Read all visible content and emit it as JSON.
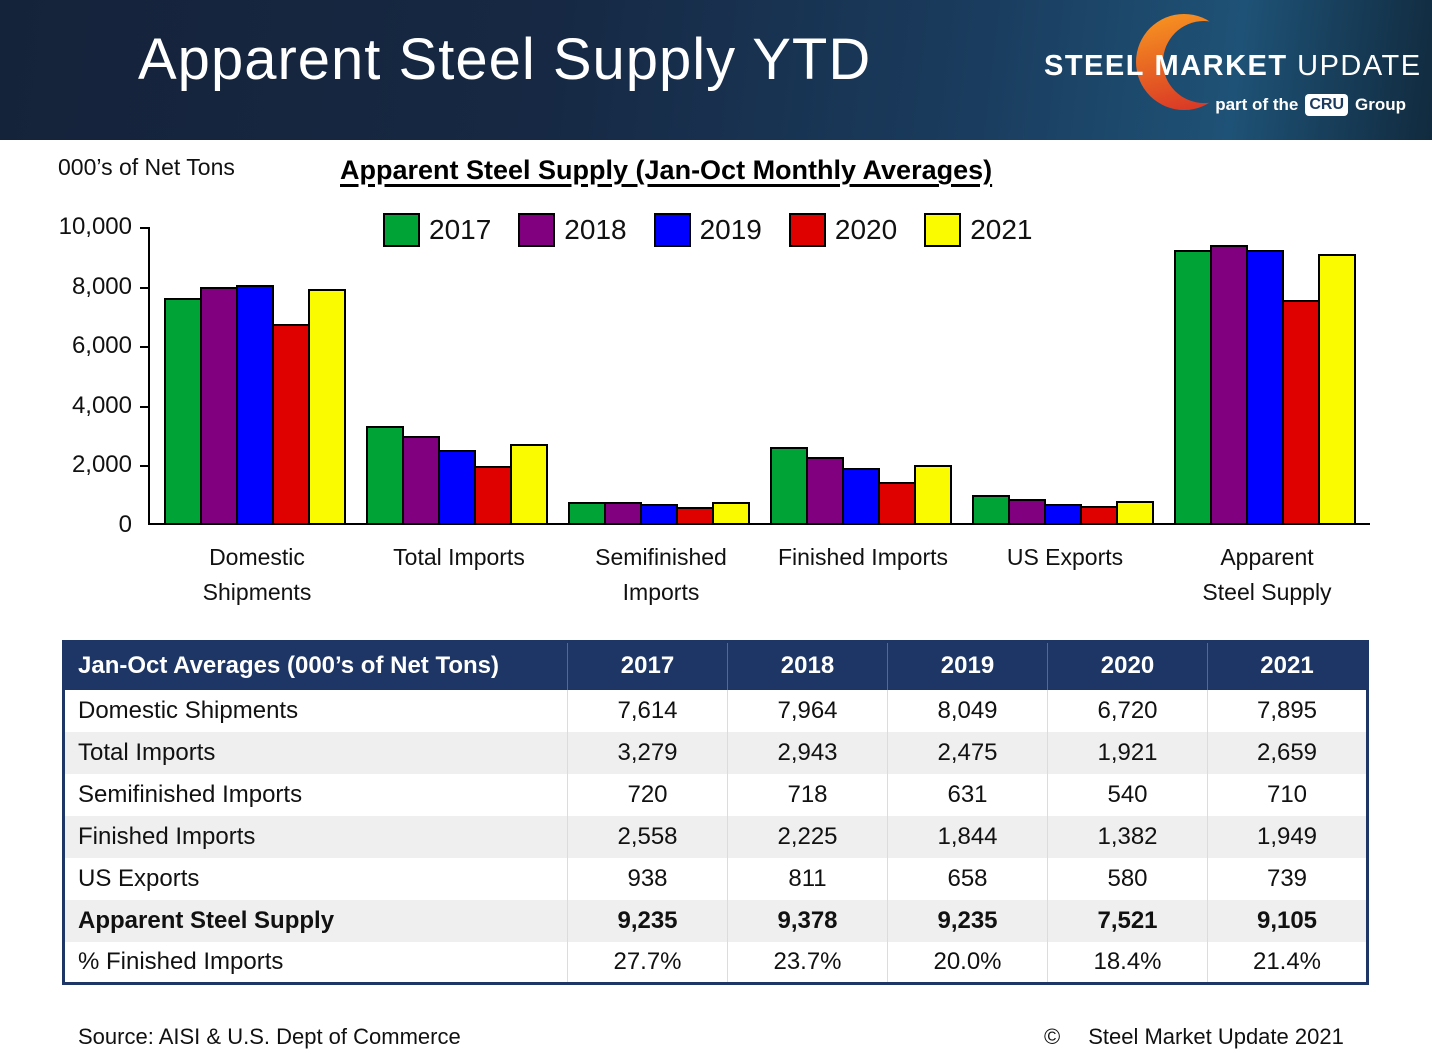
{
  "header": {
    "title": "Apparent Steel Supply YTD",
    "logo": {
      "steel": "STEEL",
      "market": "MARKET",
      "update": "UPDATE",
      "tagline_prefix": "part of the",
      "tagline_cru": "CRU",
      "tagline_suffix": "Group"
    }
  },
  "chart": {
    "units_label": "000’s of Net Tons",
    "title": "Apparent Steel Supply (Jan-Oct Monthly Averages)"
  },
  "chart_data": {
    "type": "bar",
    "title": "Apparent Steel Supply (Jan-Oct Monthly Averages)",
    "ylabel": "000’s of Net Tons",
    "ylim": [
      0,
      10000
    ],
    "ytick_values": [
      10000,
      8000,
      6000,
      4000,
      2000,
      0
    ],
    "ytick_labels": [
      "10,000",
      "8,000",
      "6,000",
      "4,000",
      "2,000",
      "0"
    ],
    "grid": false,
    "legend_position": "top-inside",
    "categories": [
      "Domestic Shipments",
      "Total Imports",
      "Semifinished Imports",
      "Finished Imports",
      "US Exports",
      "Apparent Steel Supply"
    ],
    "category_label_lines": [
      [
        "Domestic",
        "Shipments"
      ],
      [
        "Total Imports"
      ],
      [
        "Semifinished",
        "Imports"
      ],
      [
        "Finished Imports"
      ],
      [
        "US Exports"
      ],
      [
        "Apparent",
        "Steel Supply"
      ]
    ],
    "series": [
      {
        "name": "2017",
        "color": "#00a336",
        "values": [
          7614,
          3279,
          720,
          2558,
          938,
          9235
        ]
      },
      {
        "name": "2018",
        "color": "#800080",
        "values": [
          7964,
          2943,
          718,
          2225,
          811,
          9378
        ]
      },
      {
        "name": "2019",
        "color": "#0000fe",
        "values": [
          8049,
          2475,
          631,
          1844,
          658,
          9235
        ]
      },
      {
        "name": "2020",
        "color": "#df0000",
        "values": [
          6720,
          1921,
          540,
          1382,
          580,
          7521
        ]
      },
      {
        "name": "2021",
        "color": "#fbfb00",
        "values": [
          7895,
          2659,
          710,
          1949,
          739,
          9105
        ]
      }
    ]
  },
  "table": {
    "header": [
      "Jan-Oct Averages (000’s of Net Tons)",
      "2017",
      "2018",
      "2019",
      "2020",
      "2021"
    ],
    "rows": [
      {
        "label": "Domestic Shipments",
        "values": [
          "7,614",
          "7,964",
          "8,049",
          "6,720",
          "7,895"
        ],
        "bold": false,
        "alt": false
      },
      {
        "label": "Total Imports",
        "values": [
          "3,279",
          "2,943",
          "2,475",
          "1,921",
          "2,659"
        ],
        "bold": false,
        "alt": true
      },
      {
        "label": "Semifinished Imports",
        "values": [
          "720",
          "718",
          "631",
          "540",
          "710"
        ],
        "bold": false,
        "alt": false
      },
      {
        "label": "Finished Imports",
        "values": [
          "2,558",
          "2,225",
          "1,844",
          "1,382",
          "1,949"
        ],
        "bold": false,
        "alt": true
      },
      {
        "label": "US Exports",
        "values": [
          "938",
          "811",
          "658",
          "580",
          "739"
        ],
        "bold": false,
        "alt": false
      },
      {
        "label": "Apparent Steel Supply",
        "values": [
          "9,235",
          "9,378",
          "9,235",
          "7,521",
          "9,105"
        ],
        "bold": true,
        "alt": true
      },
      {
        "label": "% Finished Imports",
        "values": [
          "27.7%",
          "23.7%",
          "20.0%",
          "18.4%",
          "21.4%"
        ],
        "bold": false,
        "alt": false
      }
    ]
  },
  "footer": {
    "source": "Source:  AISI & U.S. Dept of Commerce",
    "copyright_symbol": "©",
    "copyright_text": "Steel Market Update 2021"
  },
  "colors": {
    "header_navy": "#15233a",
    "table_navy": "#1e3666",
    "row_alt": "#efefef",
    "crescent_orange": "#f79420",
    "crescent_red": "#da3b26"
  }
}
